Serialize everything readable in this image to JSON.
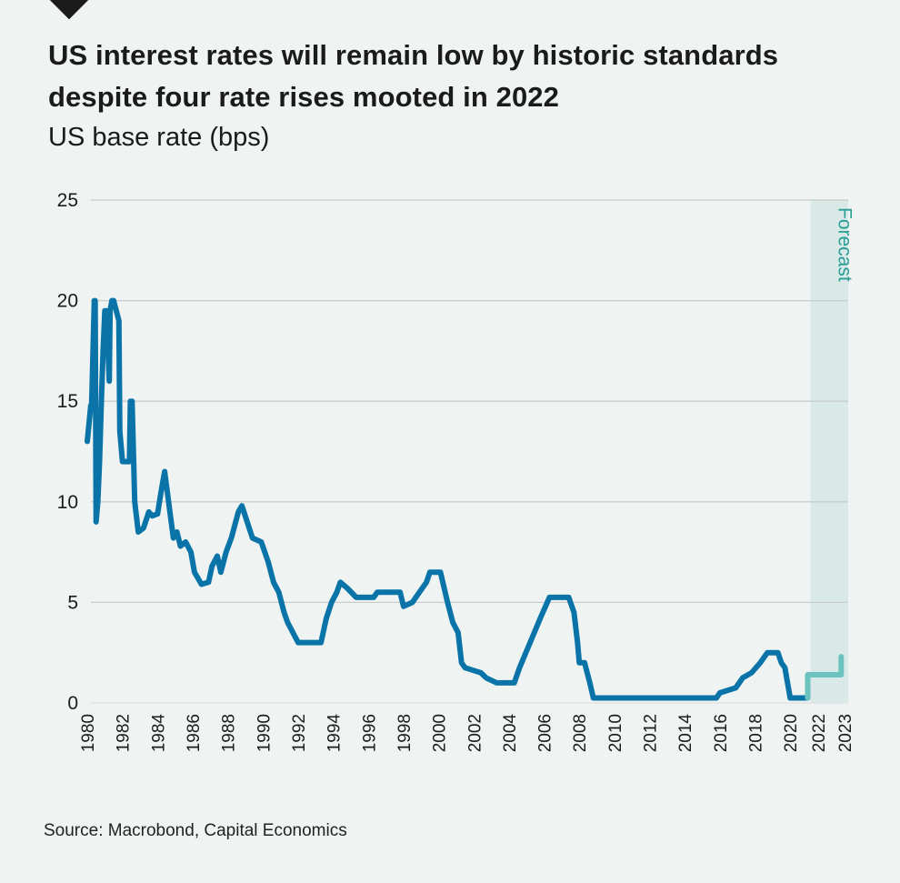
{
  "title": "US interest rates will remain low by historic standards despite four rate rises mooted in 2022",
  "subtitle": "US base rate (bps)",
  "source": "Source: Macrobond, Capital Economics",
  "colors": {
    "background": "#eff3f2",
    "history_line": "#0a74a8",
    "forecast_line": "#6cc2be",
    "forecast_band": "#d8e9e8",
    "forecast_text": "#2a9d95",
    "gridline": "#c9cccb"
  },
  "chart_data": {
    "type": "line",
    "title": "US interest rates will remain low by historic standards despite four rate rises mooted in 2022",
    "subtitle": "US base rate (bps)",
    "xlabel": "",
    "ylabel": "US base rate (bps)",
    "ylim": [
      0,
      25
    ],
    "xlim": [
      1980,
      2023.3
    ],
    "grid": true,
    "legend": "none",
    "yticks": [
      "0",
      "5",
      "10",
      "15",
      "20",
      "25"
    ],
    "ytick_values": [
      0,
      5,
      10,
      15,
      20,
      25
    ],
    "xticks": [
      "1980",
      "1982",
      "1984",
      "1986",
      "1988",
      "1990",
      "1992",
      "1994",
      "1996",
      "1998",
      "2000",
      "2002",
      "2004",
      "2006",
      "2008",
      "2010",
      "2012",
      "2014",
      "2016",
      "2018",
      "2020",
      "2022",
      "2023"
    ],
    "xtick_values": [
      1980,
      1982,
      1984,
      1986,
      1988,
      1990,
      1992,
      1994,
      1996,
      1998,
      2000,
      2002,
      2004,
      2006,
      2008,
      2010,
      2012,
      2014,
      2016,
      2018,
      2020,
      2021.6,
      2023.1
    ],
    "annotations": [
      {
        "text": "Forecast",
        "x_start": 2021.0,
        "x_end": 2023.3
      }
    ],
    "series": [
      {
        "name": "US base rate",
        "x": [
          1980.0,
          1980.2,
          1980.25,
          1980.4,
          1980.45,
          1980.5,
          1980.6,
          1980.7,
          1980.8,
          1980.9,
          1981.0,
          1981.1,
          1981.25,
          1981.3,
          1981.4,
          1981.5,
          1981.8,
          1981.85,
          1982.0,
          1982.1,
          1982.4,
          1982.45,
          1982.55,
          1982.7,
          1982.9,
          1983.2,
          1983.5,
          1983.7,
          1984.0,
          1984.2,
          1984.4,
          1984.7,
          1984.9,
          1985.1,
          1985.3,
          1985.6,
          1985.9,
          1986.1,
          1986.5,
          1986.9,
          1987.1,
          1987.4,
          1987.6,
          1987.9,
          1988.2,
          1988.6,
          1988.8,
          1989.1,
          1989.4,
          1989.9,
          1990.3,
          1990.6,
          1990.9,
          1991.2,
          1991.4,
          1991.7,
          1992.0,
          1993.3,
          1993.6,
          1993.9,
          1994.2,
          1994.4,
          1994.8,
          1995.3,
          1996.3,
          1996.5,
          1997.8,
          1998.0,
          1998.5,
          1998.9,
          1999.3,
          1999.5,
          2000.1,
          2000.5,
          2000.8,
          2001.1,
          2001.3,
          2001.5,
          2002.4,
          2002.7,
          2003.3,
          2004.3,
          2004.6,
          2005.2,
          2005.8,
          2006.3,
          2007.4,
          2007.7,
          2007.9,
          2008.0,
          2008.3,
          2008.6,
          2008.8,
          2015.8,
          2016.0,
          2016.9,
          2017.3,
          2017.8,
          2018.3,
          2018.7,
          2019.3,
          2019.5,
          2019.7,
          2020.0,
          2021.0
        ],
        "values": [
          13,
          14.8,
          14.8,
          20,
          20,
          9,
          10,
          12,
          15,
          17.5,
          19.5,
          19.5,
          16,
          19.5,
          20,
          20,
          19,
          13.5,
          12,
          12,
          12,
          15,
          15,
          10,
          8.5,
          8.7,
          9.5,
          9.3,
          9.4,
          10.5,
          11.5,
          9.5,
          8.2,
          8.5,
          7.8,
          8,
          7.5,
          6.5,
          5.9,
          6,
          6.8,
          7.3,
          6.5,
          7.5,
          8.2,
          9.5,
          9.8,
          9,
          8.2,
          8,
          7,
          6,
          5.5,
          4.5,
          4,
          3.5,
          3,
          3,
          4.2,
          5,
          5.5,
          6,
          5.7,
          5.25,
          5.25,
          5.5,
          5.5,
          4.8,
          5,
          5.5,
          6,
          6.5,
          6.5,
          5,
          4,
          3.5,
          2,
          1.75,
          1.5,
          1.25,
          1,
          1,
          1.75,
          3,
          4.25,
          5.25,
          5.25,
          4.5,
          3,
          2,
          2,
          1,
          0.25,
          0.25,
          0.5,
          0.75,
          1.25,
          1.5,
          2,
          2.5,
          2.5,
          2,
          1.75,
          0.25,
          0.25
        ]
      },
      {
        "name": "Forecast",
        "x": [
          2021.0,
          2021.0,
          2022.9,
          2022.9
        ],
        "values": [
          0.25,
          1.4,
          1.4,
          2.3
        ]
      }
    ]
  }
}
